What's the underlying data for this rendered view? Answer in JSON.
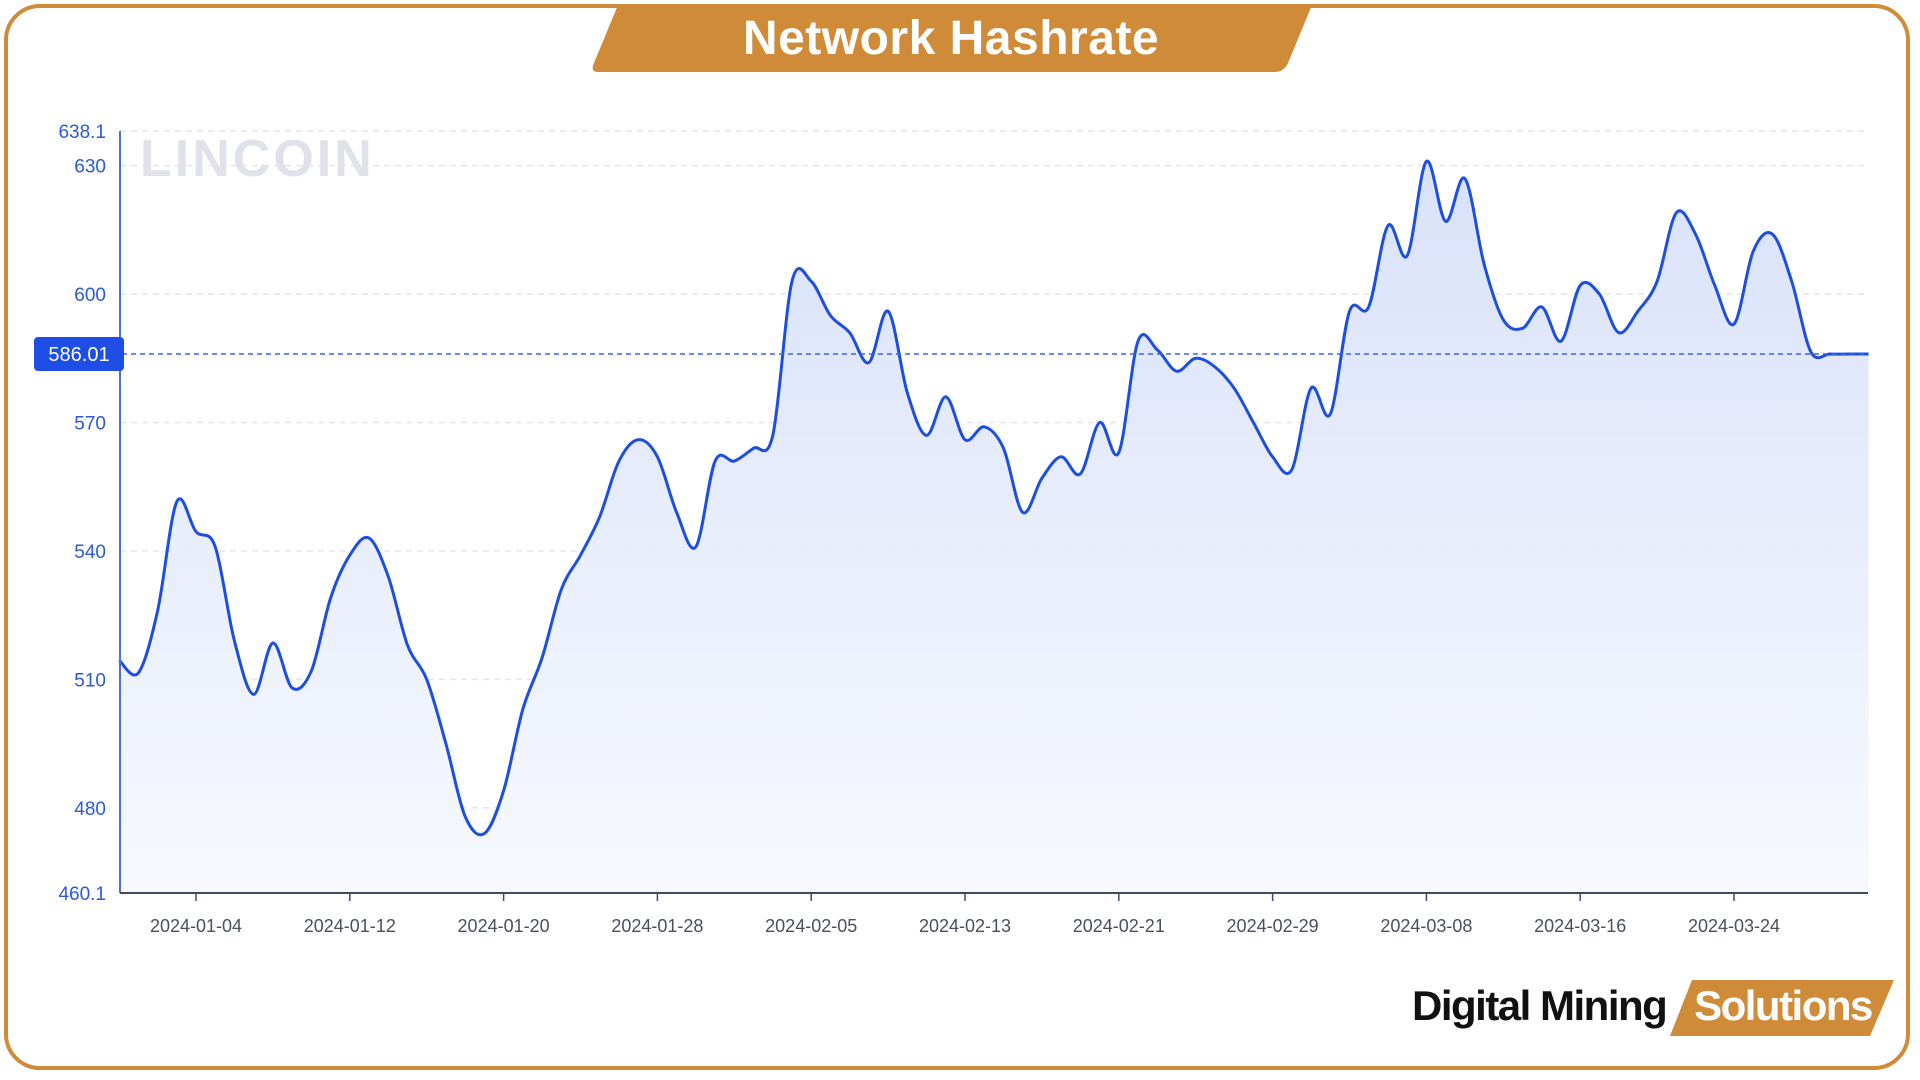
{
  "header": {
    "title": "Network Hashrate"
  },
  "watermark": "LINCOIN",
  "brand": {
    "main": "Digital Mining",
    "accent": "Solutions"
  },
  "colors": {
    "frame": "#cf8b38",
    "line": "#1d4ee0",
    "fill": "#dbe3fa",
    "label_bg": "#1f4ee6"
  },
  "chart_data": {
    "type": "area",
    "ylim": [
      460.1,
      638.1
    ],
    "yticks": [
      "638.1",
      "630",
      "600",
      "570",
      "540",
      "510",
      "480",
      "460.1"
    ],
    "ytick_values": [
      638.1,
      630,
      600,
      570,
      540,
      510,
      480,
      460.1
    ],
    "xticks": [
      "2024-01-04",
      "2024-01-12",
      "2024-01-20",
      "2024-01-28",
      "2024-02-05",
      "2024-02-13",
      "2024-02-21",
      "2024-02-29",
      "2024-03-08",
      "2024-03-16",
      "2024-03-24"
    ],
    "current_value": "586.01",
    "current_value_num": 586.01,
    "grid": true,
    "x": [
      "2023-12-31",
      "2024-01-01",
      "2024-01-02",
      "2024-01-03",
      "2024-01-04",
      "2024-01-05",
      "2024-01-06",
      "2024-01-07",
      "2024-01-08",
      "2024-01-09",
      "2024-01-10",
      "2024-01-11",
      "2024-01-12",
      "2024-01-13",
      "2024-01-14",
      "2024-01-15",
      "2024-01-16",
      "2024-01-17",
      "2024-01-18",
      "2024-01-19",
      "2024-01-20",
      "2024-01-21",
      "2024-01-22",
      "2024-01-23",
      "2024-01-24",
      "2024-01-25",
      "2024-01-26",
      "2024-01-27",
      "2024-01-28",
      "2024-01-29",
      "2024-01-30",
      "2024-01-31",
      "2024-02-01",
      "2024-02-02",
      "2024-02-03",
      "2024-02-04",
      "2024-02-05",
      "2024-02-06",
      "2024-02-07",
      "2024-02-08",
      "2024-02-09",
      "2024-02-10",
      "2024-02-11",
      "2024-02-12",
      "2024-02-13",
      "2024-02-14",
      "2024-02-15",
      "2024-02-16",
      "2024-02-17",
      "2024-02-18",
      "2024-02-19",
      "2024-02-20",
      "2024-02-21",
      "2024-02-22",
      "2024-02-23",
      "2024-02-24",
      "2024-02-25",
      "2024-02-26",
      "2024-02-27",
      "2024-02-28",
      "2024-02-29",
      "2024-03-01",
      "2024-03-02",
      "2024-03-03",
      "2024-03-04",
      "2024-03-05",
      "2024-03-06",
      "2024-03-07",
      "2024-03-08",
      "2024-03-09",
      "2024-03-10",
      "2024-03-11",
      "2024-03-12",
      "2024-03-13",
      "2024-03-14",
      "2024-03-15",
      "2024-03-16",
      "2024-03-17",
      "2024-03-18",
      "2024-03-19",
      "2024-03-20",
      "2024-03-21",
      "2024-03-22",
      "2024-03-23",
      "2024-03-24",
      "2024-03-25",
      "2024-03-26",
      "2024-03-27",
      "2024-03-28",
      "2024-03-29",
      "2024-03-30",
      "2024-03-31"
    ],
    "series": [
      {
        "values": [
          514.5,
          511.5,
          526,
          551.5,
          544.5,
          541,
          519,
          506.5,
          518.5,
          508,
          512,
          529,
          539,
          543,
          534,
          518,
          510,
          495,
          478,
          474,
          484,
          503,
          515,
          531,
          539,
          548,
          561,
          566,
          562,
          549,
          541,
          561,
          561,
          564,
          567,
          603,
          603,
          595,
          591,
          584,
          596,
          577,
          567,
          576,
          566,
          569,
          564,
          549,
          557,
          562,
          558,
          570,
          563,
          589,
          587,
          582,
          585,
          583,
          578,
          570,
          562,
          559,
          578,
          572,
          596,
          597,
          616,
          609,
          631,
          617,
          627,
          607,
          594,
          592,
          597,
          589,
          602,
          600,
          591,
          596,
          603,
          619,
          614,
          602,
          593,
          610,
          614,
          603,
          586.5,
          586.01,
          586.01,
          586.01
        ]
      }
    ]
  }
}
